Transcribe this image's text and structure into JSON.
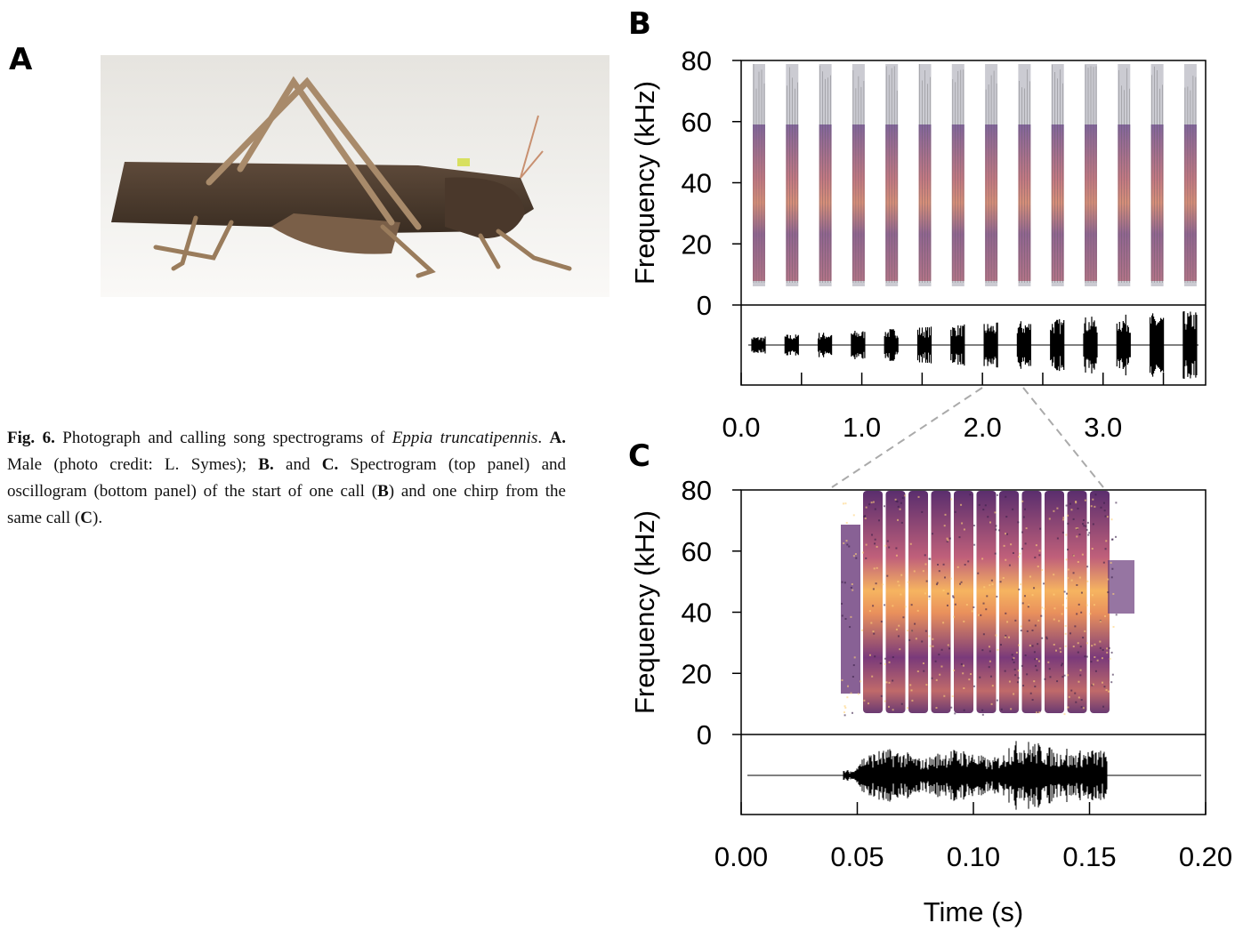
{
  "panel_a": {
    "label": "A"
  },
  "caption": {
    "runs": [
      {
        "text": "Fig. 6.",
        "style": "bold"
      },
      {
        "text": " Photograph and calling song spectrograms of ",
        "style": "regular"
      },
      {
        "text": "Eppia truncatipennis",
        "style": "italic"
      },
      {
        "text": ". ",
        "style": "regular"
      },
      {
        "text": "A.",
        "style": "bold"
      },
      {
        "text": " Male (photo credit: L. Symes); ",
        "style": "regular"
      },
      {
        "text": "B.",
        "style": "bold"
      },
      {
        "text": " and ",
        "style": "regular"
      },
      {
        "text": "C.",
        "style": "bold"
      },
      {
        "text": " Spectrogram (top panel) and oscillogram (bottom panel) of the start of one call (",
        "style": "regular"
      },
      {
        "text": "B",
        "style": "bold"
      },
      {
        "text": ") and one chirp from the same call (",
        "style": "regular"
      },
      {
        "text": "C",
        "style": "bold"
      },
      {
        "text": ").",
        "style": "regular"
      }
    ]
  },
  "chart_data": [
    {
      "type": "spectrogram",
      "panel_label": "B",
      "ylabel": "Frequency (kHz)",
      "ylim": [
        0,
        80
      ],
      "yticks": [
        0,
        20,
        40,
        60,
        80
      ],
      "xlim": [
        0,
        3.85
      ],
      "xticks": [
        {
          "value": 0,
          "label": "0.0"
        },
        {
          "value": 1,
          "label": "1.0"
        },
        {
          "value": 2,
          "label": "2.0"
        },
        {
          "value": 3,
          "label": "3.0"
        }
      ],
      "xminor_ticks": [
        0.5,
        1.5,
        2.5,
        3.5
      ]
    },
    {
      "type": "spectrogram",
      "panel_label": "C",
      "ylabel": "Frequency (kHz)",
      "xlabel": "Time (s)",
      "ylim": [
        0,
        80
      ],
      "yticks": [
        0,
        20,
        40,
        60,
        80
      ],
      "xlim": [
        0,
        0.2
      ],
      "xticks": [
        {
          "value": 0,
          "label": "0.00"
        },
        {
          "value": 0.05,
          "label": "0.05"
        },
        {
          "value": 0.1,
          "label": "0.10"
        },
        {
          "value": 0.15,
          "label": "0.15"
        },
        {
          "value": 0.2,
          "label": "0.20"
        }
      ]
    }
  ]
}
